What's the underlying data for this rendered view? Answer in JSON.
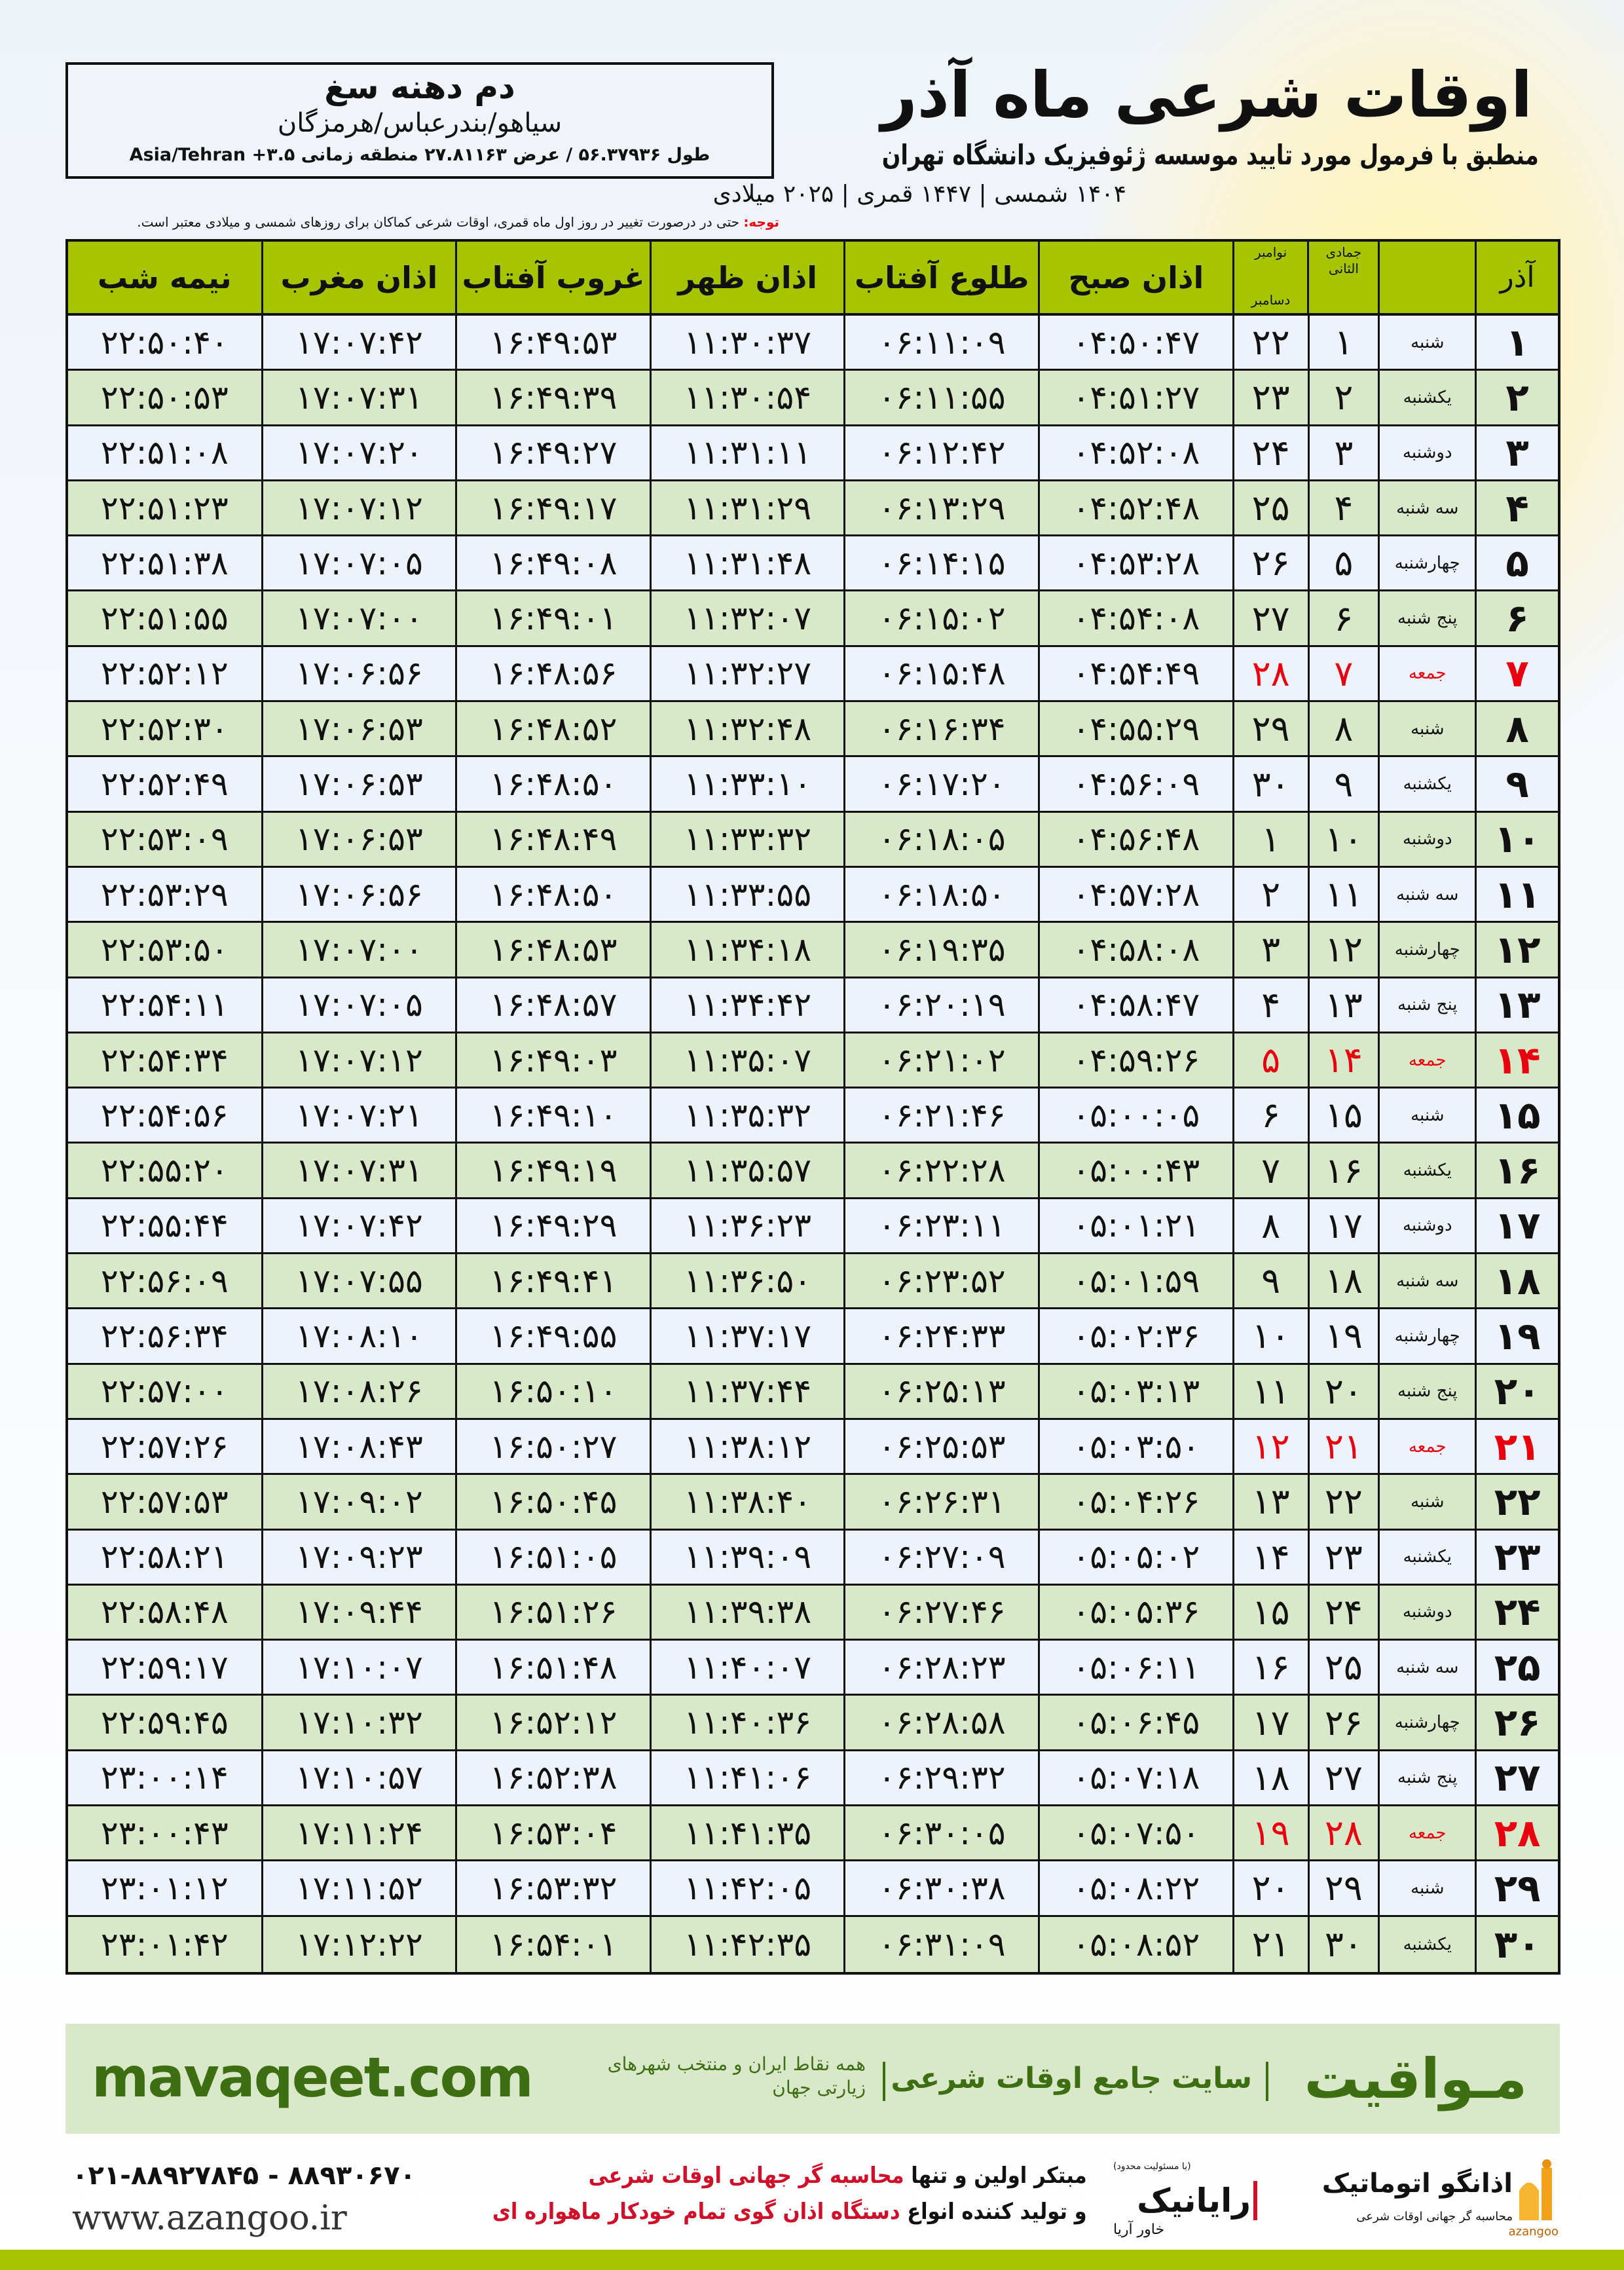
{
  "location": {
    "name": "دم دهنه سغ",
    "region": "سیاهو/بندرعباس/هرمزگان",
    "coords": "طول ۵۶.۳۷۹۳۶ / عرض ۲۷.۸۱۱۶۳ منطقه زمانی ۳.۵+ Asia/Tehran"
  },
  "header": {
    "title": "اوقات شرعی ماه آذر",
    "subtitle": "منطبق با فرمول مورد تایید موسسه ژئوفیزیک دانشگاه تهران",
    "dates": "۱۴۰۴ شمسی | ۱۴۴۷ قمری | ۲۰۲۵ میلادی"
  },
  "note": {
    "label": "توجه:",
    "text": " حتی در درصورت تغییر در روز اول ماه قمری، اوقات شرعی کماکان برای روزهای شمسی و میلادی معتبر است."
  },
  "table": {
    "columns": {
      "azar": "آذر",
      "hijri": "جمادی الثانی",
      "greg_1": "نوامبر",
      "greg_2": "دسامبر",
      "fajr": "اذان صبح",
      "sunrise": "طلوع آفتاب",
      "dhuhr": "اذان ظهر",
      "sunset": "غروب آفتاب",
      "maghrib": "اذان مغرب",
      "midnight": "نیمه شب"
    },
    "holiday_weekday": "جمعه",
    "rows": [
      [
        "۱",
        "شنبه",
        "۱",
        "۲۲",
        "۰۴:۵۰:۴۷",
        "۰۶:۱۱:۰۹",
        "۱۱:۳۰:۳۷",
        "۱۶:۴۹:۵۳",
        "۱۷:۰۷:۴۲",
        "۲۲:۵۰:۴۰"
      ],
      [
        "۲",
        "یکشنبه",
        "۲",
        "۲۳",
        "۰۴:۵۱:۲۷",
        "۰۶:۱۱:۵۵",
        "۱۱:۳۰:۵۴",
        "۱۶:۴۹:۳۹",
        "۱۷:۰۷:۳۱",
        "۲۲:۵۰:۵۳"
      ],
      [
        "۳",
        "دوشنبه",
        "۳",
        "۲۴",
        "۰۴:۵۲:۰۸",
        "۰۶:۱۲:۴۲",
        "۱۱:۳۱:۱۱",
        "۱۶:۴۹:۲۷",
        "۱۷:۰۷:۲۰",
        "۲۲:۵۱:۰۸"
      ],
      [
        "۴",
        "سه شنبه",
        "۴",
        "۲۵",
        "۰۴:۵۲:۴۸",
        "۰۶:۱۳:۲۹",
        "۱۱:۳۱:۲۹",
        "۱۶:۴۹:۱۷",
        "۱۷:۰۷:۱۲",
        "۲۲:۵۱:۲۳"
      ],
      [
        "۵",
        "چهارشنبه",
        "۵",
        "۲۶",
        "۰۴:۵۳:۲۸",
        "۰۶:۱۴:۱۵",
        "۱۱:۳۱:۴۸",
        "۱۶:۴۹:۰۸",
        "۱۷:۰۷:۰۵",
        "۲۲:۵۱:۳۸"
      ],
      [
        "۶",
        "پنج شنبه",
        "۶",
        "۲۷",
        "۰۴:۵۴:۰۸",
        "۰۶:۱۵:۰۲",
        "۱۱:۳۲:۰۷",
        "۱۶:۴۹:۰۱",
        "۱۷:۰۷:۰۰",
        "۲۲:۵۱:۵۵"
      ],
      [
        "۷",
        "جمعه",
        "۷",
        "۲۸",
        "۰۴:۵۴:۴۹",
        "۰۶:۱۵:۴۸",
        "۱۱:۳۲:۲۷",
        "۱۶:۴۸:۵۶",
        "۱۷:۰۶:۵۶",
        "۲۲:۵۲:۱۲"
      ],
      [
        "۸",
        "شنبه",
        "۸",
        "۲۹",
        "۰۴:۵۵:۲۹",
        "۰۶:۱۶:۳۴",
        "۱۱:۳۲:۴۸",
        "۱۶:۴۸:۵۲",
        "۱۷:۰۶:۵۳",
        "۲۲:۵۲:۳۰"
      ],
      [
        "۹",
        "یکشنبه",
        "۹",
        "۳۰",
        "۰۴:۵۶:۰۹",
        "۰۶:۱۷:۲۰",
        "۱۱:۳۳:۱۰",
        "۱۶:۴۸:۵۰",
        "۱۷:۰۶:۵۳",
        "۲۲:۵۲:۴۹"
      ],
      [
        "۱۰",
        "دوشنبه",
        "۱۰",
        "۱",
        "۰۴:۵۶:۴۸",
        "۰۶:۱۸:۰۵",
        "۱۱:۳۳:۳۲",
        "۱۶:۴۸:۴۹",
        "۱۷:۰۶:۵۳",
        "۲۲:۵۳:۰۹"
      ],
      [
        "۱۱",
        "سه شنبه",
        "۱۱",
        "۲",
        "۰۴:۵۷:۲۸",
        "۰۶:۱۸:۵۰",
        "۱۱:۳۳:۵۵",
        "۱۶:۴۸:۵۰",
        "۱۷:۰۶:۵۶",
        "۲۲:۵۳:۲۹"
      ],
      [
        "۱۲",
        "چهارشنبه",
        "۱۲",
        "۳",
        "۰۴:۵۸:۰۸",
        "۰۶:۱۹:۳۵",
        "۱۱:۳۴:۱۸",
        "۱۶:۴۸:۵۳",
        "۱۷:۰۷:۰۰",
        "۲۲:۵۳:۵۰"
      ],
      [
        "۱۳",
        "پنج شنبه",
        "۱۳",
        "۴",
        "۰۴:۵۸:۴۷",
        "۰۶:۲۰:۱۹",
        "۱۱:۳۴:۴۲",
        "۱۶:۴۸:۵۷",
        "۱۷:۰۷:۰۵",
        "۲۲:۵۴:۱۱"
      ],
      [
        "۱۴",
        "جمعه",
        "۱۴",
        "۵",
        "۰۴:۵۹:۲۶",
        "۰۶:۲۱:۰۲",
        "۱۱:۳۵:۰۷",
        "۱۶:۴۹:۰۳",
        "۱۷:۰۷:۱۲",
        "۲۲:۵۴:۳۴"
      ],
      [
        "۱۵",
        "شنبه",
        "۱۵",
        "۶",
        "۰۵:۰۰:۰۵",
        "۰۶:۲۱:۴۶",
        "۱۱:۳۵:۳۲",
        "۱۶:۴۹:۱۰",
        "۱۷:۰۷:۲۱",
        "۲۲:۵۴:۵۶"
      ],
      [
        "۱۶",
        "یکشنبه",
        "۱۶",
        "۷",
        "۰۵:۰۰:۴۳",
        "۰۶:۲۲:۲۸",
        "۱۱:۳۵:۵۷",
        "۱۶:۴۹:۱۹",
        "۱۷:۰۷:۳۱",
        "۲۲:۵۵:۲۰"
      ],
      [
        "۱۷",
        "دوشنبه",
        "۱۷",
        "۸",
        "۰۵:۰۱:۲۱",
        "۰۶:۲۳:۱۱",
        "۱۱:۳۶:۲۳",
        "۱۶:۴۹:۲۹",
        "۱۷:۰۷:۴۲",
        "۲۲:۵۵:۴۴"
      ],
      [
        "۱۸",
        "سه شنبه",
        "۱۸",
        "۹",
        "۰۵:۰۱:۵۹",
        "۰۶:۲۳:۵۲",
        "۱۱:۳۶:۵۰",
        "۱۶:۴۹:۴۱",
        "۱۷:۰۷:۵۵",
        "۲۲:۵۶:۰۹"
      ],
      [
        "۱۹",
        "چهارشنبه",
        "۱۹",
        "۱۰",
        "۰۵:۰۲:۳۶",
        "۰۶:۲۴:۳۳",
        "۱۱:۳۷:۱۷",
        "۱۶:۴۹:۵۵",
        "۱۷:۰۸:۱۰",
        "۲۲:۵۶:۳۴"
      ],
      [
        "۲۰",
        "پنج شنبه",
        "۲۰",
        "۱۱",
        "۰۵:۰۳:۱۳",
        "۰۶:۲۵:۱۳",
        "۱۱:۳۷:۴۴",
        "۱۶:۵۰:۱۰",
        "۱۷:۰۸:۲۶",
        "۲۲:۵۷:۰۰"
      ],
      [
        "۲۱",
        "جمعه",
        "۲۱",
        "۱۲",
        "۰۵:۰۳:۵۰",
        "۰۶:۲۵:۵۳",
        "۱۱:۳۸:۱۲",
        "۱۶:۵۰:۲۷",
        "۱۷:۰۸:۴۳",
        "۲۲:۵۷:۲۶"
      ],
      [
        "۲۲",
        "شنبه",
        "۲۲",
        "۱۳",
        "۰۵:۰۴:۲۶",
        "۰۶:۲۶:۳۱",
        "۱۱:۳۸:۴۰",
        "۱۶:۵۰:۴۵",
        "۱۷:۰۹:۰۲",
        "۲۲:۵۷:۵۳"
      ],
      [
        "۲۳",
        "یکشنبه",
        "۲۳",
        "۱۴",
        "۰۵:۰۵:۰۲",
        "۰۶:۲۷:۰۹",
        "۱۱:۳۹:۰۹",
        "۱۶:۵۱:۰۵",
        "۱۷:۰۹:۲۳",
        "۲۲:۵۸:۲۱"
      ],
      [
        "۲۴",
        "دوشنبه",
        "۲۴",
        "۱۵",
        "۰۵:۰۵:۳۶",
        "۰۶:۲۷:۴۶",
        "۱۱:۳۹:۳۸",
        "۱۶:۵۱:۲۶",
        "۱۷:۰۹:۴۴",
        "۲۲:۵۸:۴۸"
      ],
      [
        "۲۵",
        "سه شنبه",
        "۲۵",
        "۱۶",
        "۰۵:۰۶:۱۱",
        "۰۶:۲۸:۲۳",
        "۱۱:۴۰:۰۷",
        "۱۶:۵۱:۴۸",
        "۱۷:۱۰:۰۷",
        "۲۲:۵۹:۱۷"
      ],
      [
        "۲۶",
        "چهارشنبه",
        "۲۶",
        "۱۷",
        "۰۵:۰۶:۴۵",
        "۰۶:۲۸:۵۸",
        "۱۱:۴۰:۳۶",
        "۱۶:۵۲:۱۲",
        "۱۷:۱۰:۳۲",
        "۲۲:۵۹:۴۵"
      ],
      [
        "۲۷",
        "پنج شنبه",
        "۲۷",
        "۱۸",
        "۰۵:۰۷:۱۸",
        "۰۶:۲۹:۳۲",
        "۱۱:۴۱:۰۶",
        "۱۶:۵۲:۳۸",
        "۱۷:۱۰:۵۷",
        "۲۳:۰۰:۱۴"
      ],
      [
        "۲۸",
        "جمعه",
        "۲۸",
        "۱۹",
        "۰۵:۰۷:۵۰",
        "۰۶:۳۰:۰۵",
        "۱۱:۴۱:۳۵",
        "۱۶:۵۳:۰۴",
        "۱۷:۱۱:۲۴",
        "۲۳:۰۰:۴۳"
      ],
      [
        "۲۹",
        "شنبه",
        "۲۹",
        "۲۰",
        "۰۵:۰۸:۲۲",
        "۰۶:۳۰:۳۸",
        "۱۱:۴۲:۰۵",
        "۱۶:۵۳:۳۲",
        "۱۷:۱۱:۵۲",
        "۲۳:۰۱:۱۲"
      ],
      [
        "۳۰",
        "یکشنبه",
        "۳۰",
        "۲۱",
        "۰۵:۰۸:۵۲",
        "۰۶:۳۱:۰۹",
        "۱۱:۴۲:۳۵",
        "۱۶:۵۴:۰۱",
        "۱۷:۱۲:۲۲",
        "۲۳:۰۱:۴۲"
      ]
    ]
  },
  "banner": {
    "brand": "مـواقیت",
    "tagline": "سایت جامع اوقات شرعی",
    "scope": "همه نقاط ایران و منتخب شهرهای زیارتی جهان",
    "url": "mavaqeet.com"
  },
  "footer": {
    "promo_1a": "مبتکر اولین و تنها ",
    "promo_1b": "محاسبه گر جهانی اوقات شرعی",
    "promo_2a": "و تولید کننده انواع ",
    "promo_2b": "دستگاه اذان گوی تمام خودکار ماهواره ای",
    "phone": "۰۲۱-۸۸۹۲۷۸۴۵ - ۸۸۹۳۰۶۷۰",
    "website": "www.azangoo.ir",
    "logo_raynik": "رایانیک",
    "logo_raynik_sub": "خاور آریا",
    "logo_raynik_note": "(با مسئولیت محدود)",
    "logo_azangoo": "اذانگو اتوماتیک",
    "logo_azangoo_latin": "azangoo",
    "logo_azangoo_sub": "محاسبه گر جهانی اوقات شرعی"
  },
  "colors": {
    "header_green": "#a6c400",
    "row_green": "#d9e8c9",
    "row_light": "#eef3fb",
    "holiday_red": "#e8000f",
    "brand_green": "#3e6e12"
  }
}
